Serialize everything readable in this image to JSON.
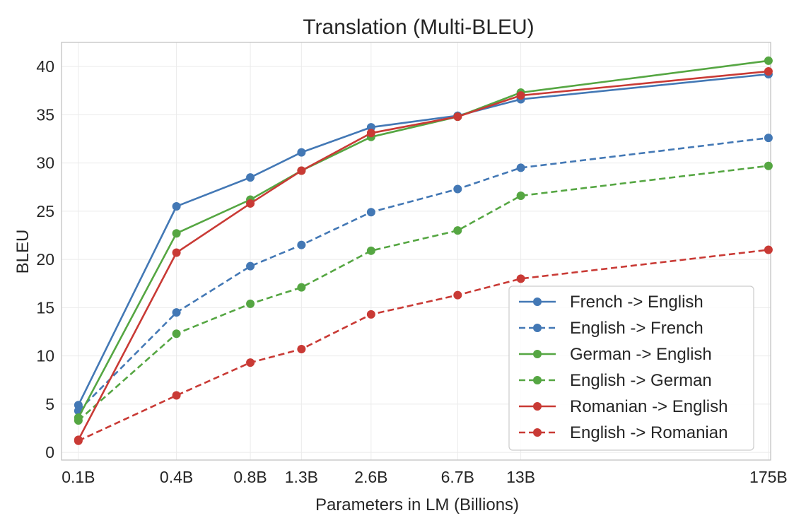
{
  "chart_data": {
    "type": "line",
    "title": "Translation (Multi-BLEU)",
    "xlabel": "Parameters in LM (Billions)",
    "ylabel": "BLEU",
    "x_scale": "log",
    "categories": [
      "0.1B",
      "0.4B",
      "0.8B",
      "1.3B",
      "2.6B",
      "6.7B",
      "13B",
      "175B"
    ],
    "x": [
      0.125,
      0.35,
      0.76,
      1.3,
      2.7,
      6.7,
      13,
      175
    ],
    "ylim": [
      -0.8,
      42.5
    ],
    "yticks": [
      0,
      5,
      10,
      15,
      20,
      25,
      30,
      35,
      40
    ],
    "grid": true,
    "legend_position": "lower-right",
    "series": [
      {
        "name": "French -> English",
        "color": "#4378b5",
        "style": "solid",
        "values": [
          4.9,
          25.5,
          28.5,
          31.1,
          33.7,
          34.9,
          36.6,
          39.2
        ]
      },
      {
        "name": "English -> French",
        "color": "#4378b5",
        "style": "dashed",
        "values": [
          4.3,
          14.5,
          19.3,
          21.5,
          24.9,
          27.3,
          29.5,
          32.6
        ]
      },
      {
        "name": "German -> English",
        "color": "#55a642",
        "style": "solid",
        "values": [
          3.6,
          22.7,
          26.2,
          29.2,
          32.7,
          34.8,
          37.3,
          40.6
        ]
      },
      {
        "name": "English -> German",
        "color": "#55a642",
        "style": "dashed",
        "values": [
          3.3,
          12.3,
          15.4,
          17.1,
          20.9,
          23.0,
          26.6,
          29.7
        ]
      },
      {
        "name": "Romanian -> English",
        "color": "#c93a35",
        "style": "solid",
        "values": [
          1.3,
          20.7,
          25.8,
          29.2,
          33.1,
          34.8,
          37.0,
          39.5
        ]
      },
      {
        "name": "English -> Romanian",
        "color": "#c93a35",
        "style": "dashed",
        "values": [
          1.2,
          5.9,
          9.3,
          10.7,
          14.3,
          16.3,
          18.0,
          21.0
        ]
      }
    ]
  }
}
